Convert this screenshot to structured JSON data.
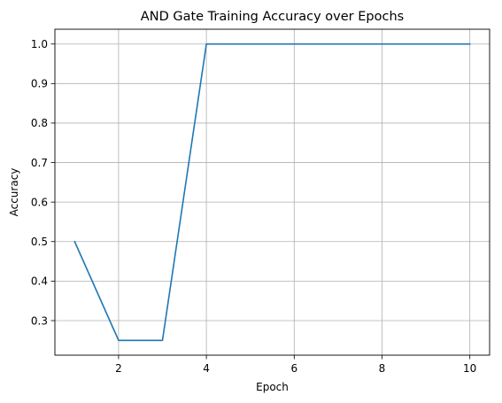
{
  "chart_data": {
    "type": "line",
    "title": "AND Gate Training Accuracy over Epochs",
    "xlabel": "Epoch",
    "ylabel": "Accuracy",
    "x": [
      1,
      2,
      3,
      4,
      5,
      6,
      7,
      8,
      9,
      10
    ],
    "series": [
      {
        "values": [
          0.5,
          0.25,
          0.25,
          1.0,
          1.0,
          1.0,
          1.0,
          1.0,
          1.0,
          1.0
        ],
        "color": "#1f77b4"
      }
    ],
    "xlim": [
      0.55,
      10.45
    ],
    "ylim": [
      0.2125,
      1.0375
    ],
    "xticks": [
      2,
      4,
      6,
      8,
      10
    ],
    "xtick_labels": [
      "2",
      "4",
      "6",
      "8",
      "10"
    ],
    "yticks": [
      0.3,
      0.4,
      0.5,
      0.6,
      0.7,
      0.8,
      0.9,
      1.0
    ],
    "ytick_labels": [
      "0.3",
      "0.4",
      "0.5",
      "0.6",
      "0.7",
      "0.8",
      "0.9",
      "1.0"
    ],
    "grid": true,
    "grid_color": "#b0b0b0"
  }
}
